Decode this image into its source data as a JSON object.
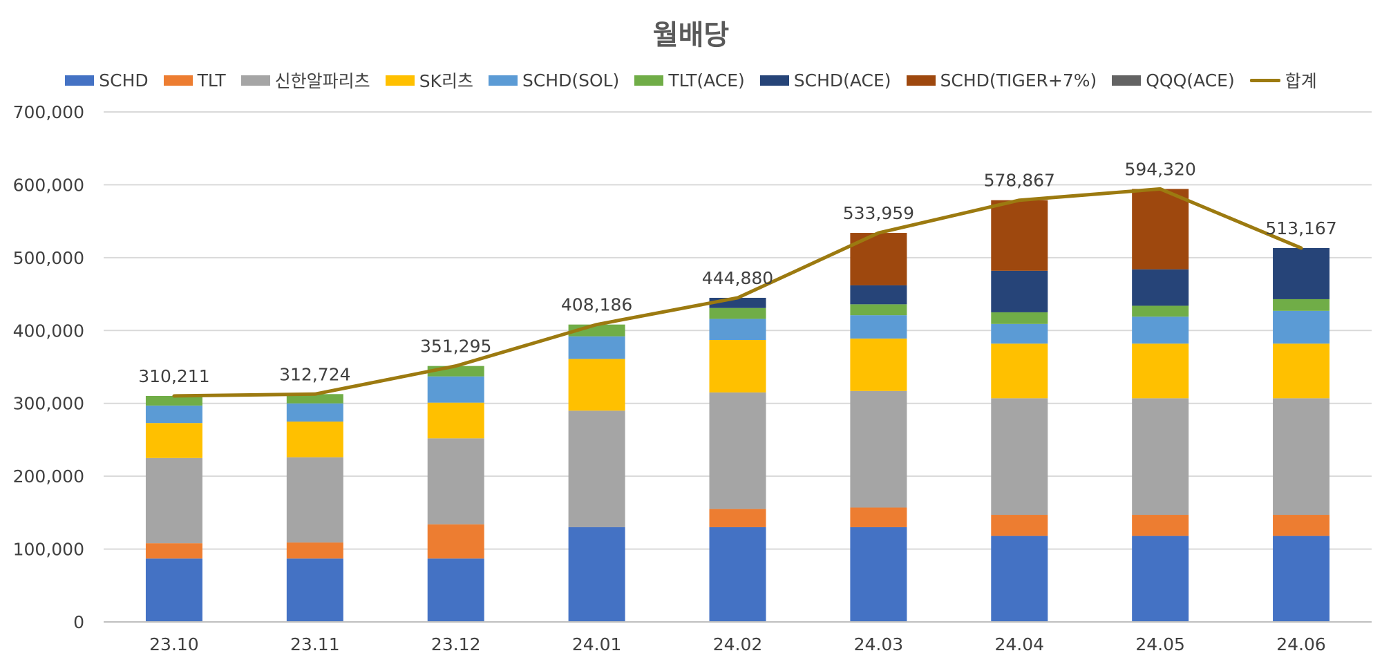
{
  "chart_data": {
    "type": "bar",
    "stacked": true,
    "title": "월배당",
    "categories": [
      "23.10",
      "23.11",
      "23.12",
      "24.01",
      "24.02",
      "24.03",
      "24.04",
      "24.05",
      "24.06"
    ],
    "ylim": [
      0,
      700000
    ],
    "yticks": [
      0,
      100000,
      200000,
      300000,
      400000,
      500000,
      600000,
      700000
    ],
    "ytick_labels": [
      "0",
      "100,000",
      "200,000",
      "300,000",
      "400,000",
      "500,000",
      "600,000",
      "700,000"
    ],
    "grid": true,
    "legend_position": "top",
    "series": [
      {
        "name": "SCHD",
        "color": "#4472C4",
        "values": [
          87000,
          87000,
          87000,
          130000,
          130000,
          130000,
          118000,
          118000,
          118000
        ]
      },
      {
        "name": "TLT",
        "color": "#ED7D31",
        "values": [
          21000,
          22000,
          47000,
          0,
          25000,
          27000,
          29000,
          29000,
          29000
        ]
      },
      {
        "name": "신한알파리츠",
        "color": "#A5A5A5",
        "values": [
          117000,
          117000,
          118000,
          160000,
          160000,
          160000,
          160000,
          160000,
          160000
        ]
      },
      {
        "name": "SK리츠",
        "color": "#FFC000",
        "values": [
          48000,
          49000,
          49000,
          71000,
          72000,
          72000,
          75000,
          75000,
          75000
        ]
      },
      {
        "name": "SCHD(SOL)",
        "color": "#5B9BD5",
        "values": [
          24000,
          25000,
          36000,
          31000,
          29000,
          32000,
          27000,
          37000,
          45000
        ]
      },
      {
        "name": "TLT(ACE)",
        "color": "#70AD47",
        "values": [
          13211,
          12724,
          14295,
          16186,
          14880,
          15000,
          16000,
          15000,
          16000
        ]
      },
      {
        "name": "SCHD(ACE)",
        "color": "#264478",
        "values": [
          0,
          0,
          0,
          0,
          14000,
          26000,
          57000,
          50000,
          70167
        ]
      },
      {
        "name": "SCHD(TIGER+7%)",
        "color": "#9E480E",
        "values": [
          0,
          0,
          0,
          0,
          0,
          71959,
          96867,
          110320,
          0
        ]
      },
      {
        "name": "QQQ(ACE)",
        "color": "#636363",
        "values": [
          0,
          0,
          0,
          0,
          0,
          0,
          0,
          0,
          0
        ]
      }
    ],
    "total_series": {
      "name": "합계",
      "color": "#9C7A10",
      "values": [
        310211,
        312724,
        351295,
        408186,
        444880,
        533959,
        578867,
        594320,
        513167
      ],
      "labels": [
        "310,211",
        "312,724",
        "351,295",
        "408,186",
        "444,880",
        "533,959",
        "578,867",
        "594,320",
        "513,167"
      ]
    }
  }
}
